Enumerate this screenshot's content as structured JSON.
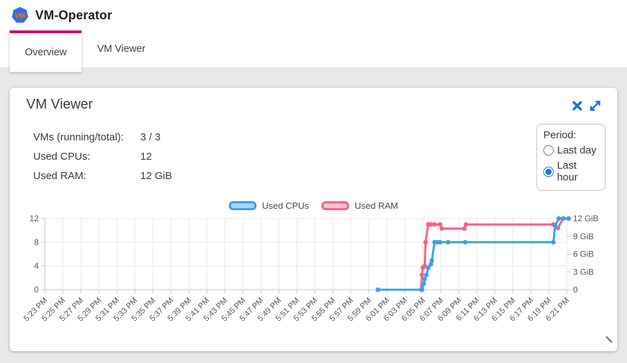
{
  "header": {
    "title": "VM-Operator",
    "logo_text": "VM"
  },
  "tabs": [
    {
      "label": "Overview",
      "active": true
    },
    {
      "label": "VM Viewer",
      "active": false
    }
  ],
  "card": {
    "title": "VM Viewer",
    "stats": [
      {
        "label": "VMs (running/total):",
        "value": "3 / 3"
      },
      {
        "label": "Used CPUs:",
        "value": "12"
      },
      {
        "label": "Used RAM:",
        "value": "12 GiB"
      }
    ],
    "period": {
      "label": "Period:",
      "options": [
        {
          "label": "Last day",
          "selected": false
        },
        {
          "label": "Last hour",
          "selected": true
        }
      ]
    }
  },
  "colors": {
    "tab_accent": "#CA0668",
    "icon_blue": "#1272D4",
    "radio_accent": "#1A73E8",
    "logo_blue": "#326CE5",
    "logo_text_orange": "#F6821F",
    "page_background": "#E9E9E9"
  },
  "chart_data": {
    "type": "line",
    "title": "",
    "xlabel": "",
    "ylabel_left": "",
    "ylabel_right": "",
    "grid": true,
    "legend_position": "top-center",
    "x_minutes_range": [
      0,
      58
    ],
    "x_tick_labels": [
      "5:23 PM",
      "5:25 PM",
      "5:27 PM",
      "5:29 PM",
      "5:31 PM",
      "5:33 PM",
      "5:35 PM",
      "5:37 PM",
      "5:39 PM",
      "5:41 PM",
      "5:43 PM",
      "5:45 PM",
      "5:47 PM",
      "5:49 PM",
      "5:51 PM",
      "5:53 PM",
      "5:55 PM",
      "5:57 PM",
      "5:59 PM",
      "6:01 PM",
      "6:03 PM",
      "6:05 PM",
      "6:07 PM",
      "6:09 PM",
      "6:11 PM",
      "6:13 PM",
      "6:15 PM",
      "6:17 PM",
      "6:19 PM",
      "6:21 PM"
    ],
    "left_axis": {
      "range": [
        0,
        12
      ],
      "ticks": [
        0,
        4,
        8,
        12
      ]
    },
    "right_axis": {
      "range": [
        0,
        12
      ],
      "ticks": [
        {
          "v": 0,
          "label": "0"
        },
        {
          "v": 3,
          "label": "3 GiB"
        },
        {
          "v": 6,
          "label": "6 GiB"
        },
        {
          "v": 9,
          "label": "9 GiB"
        },
        {
          "v": 12,
          "label": "12 GiB"
        }
      ]
    },
    "series": [
      {
        "name": "Used CPUs",
        "axis": "left",
        "color": "#3AA0E8",
        "fill": "rgba(58,160,232,0.45)",
        "points": [
          [
            37.0,
            0
          ],
          [
            41.9,
            0
          ],
          [
            42.1,
            1
          ],
          [
            42.2,
            1.8
          ],
          [
            42.4,
            2.5
          ],
          [
            42.6,
            3.7
          ],
          [
            42.9,
            4.3
          ],
          [
            43.0,
            4.9
          ],
          [
            43.3,
            8
          ],
          [
            43.6,
            8
          ],
          [
            43.9,
            8
          ],
          [
            44.8,
            8
          ],
          [
            46.7,
            8
          ],
          [
            56.5,
            8
          ],
          [
            56.7,
            10.8
          ],
          [
            57.1,
            12
          ],
          [
            57.6,
            12
          ],
          [
            58.2,
            12
          ]
        ]
      },
      {
        "name": "Used RAM",
        "axis": "right",
        "unit": "GiB",
        "color": "#FA617F",
        "fill": "rgba(250,97,127,0.40)",
        "points": [
          [
            37.0,
            0
          ],
          [
            41.8,
            0
          ],
          [
            41.9,
            2.5
          ],
          [
            42.0,
            3.7
          ],
          [
            42.2,
            4
          ],
          [
            42.3,
            8
          ],
          [
            42.6,
            11
          ],
          [
            42.9,
            11
          ],
          [
            43.3,
            11
          ],
          [
            43.9,
            11
          ],
          [
            44.1,
            10.3
          ],
          [
            46.6,
            10.3
          ],
          [
            46.8,
            11
          ],
          [
            56.5,
            11
          ],
          [
            57.0,
            10.4
          ],
          [
            57.6,
            12
          ],
          [
            58.2,
            12
          ]
        ]
      }
    ]
  }
}
